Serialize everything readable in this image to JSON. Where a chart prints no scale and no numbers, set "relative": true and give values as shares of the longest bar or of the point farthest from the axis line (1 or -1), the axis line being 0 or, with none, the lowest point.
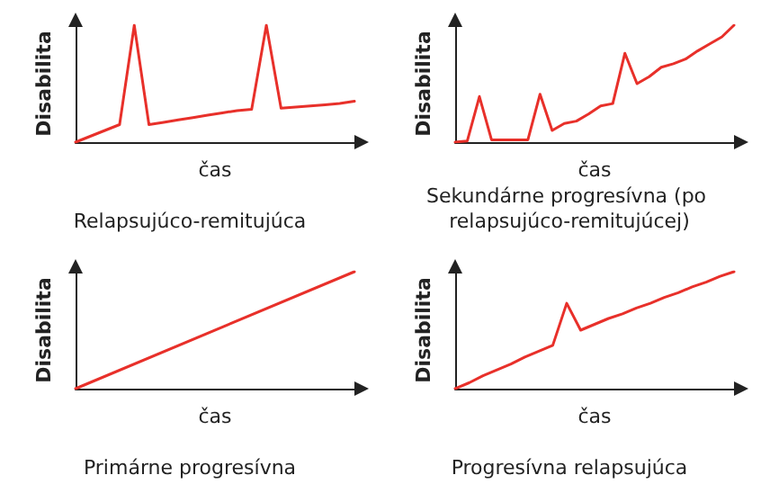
{
  "chart_data": [
    {
      "type": "line",
      "title": "Relapsujúco-remitujúca",
      "xlabel": "čas",
      "ylabel": "Disabilita",
      "relative": true,
      "categories": [
        null,
        null,
        null,
        null,
        null,
        null,
        null,
        null,
        null,
        null,
        null,
        null,
        null,
        null,
        null,
        null,
        null,
        null,
        null,
        null
      ],
      "series": [
        {
          "color": "#e8302a",
          "values": [
            0,
            0.05,
            0.1,
            0.15,
            1,
            0.15,
            0.17,
            0.19,
            0.21,
            0.23,
            0.25,
            0.27,
            0.28,
            1,
            0.29,
            0.3,
            0.31,
            0.32,
            0.33,
            0.35
          ]
        }
      ]
    },
    {
      "type": "line",
      "title": "Sekundárne progresívna (po relapsujúco-remitujúcej)",
      "xlabel": "čas",
      "ylabel": "Disabilita",
      "relative": true,
      "categories": [
        null,
        null,
        null,
        null,
        null,
        null,
        null,
        null,
        null,
        null,
        null,
        null,
        null,
        null,
        null,
        null,
        null,
        null,
        null,
        null,
        null,
        null,
        null,
        null
      ],
      "series": [
        {
          "color": "#e8302a",
          "values": [
            0,
            0.01,
            0.39,
            0.02,
            0.02,
            0.02,
            0.02,
            0.41,
            0.1,
            0.16,
            0.18,
            0.24,
            0.31,
            0.33,
            0.76,
            0.5,
            0.56,
            0.64,
            0.67,
            0.71,
            0.78,
            0.84,
            0.9,
            1
          ]
        }
      ]
    },
    {
      "type": "line",
      "title": "Primárne progresívna",
      "xlabel": "čas",
      "ylabel": "Disabilita",
      "relative": true,
      "categories": [
        null,
        null
      ],
      "series": [
        {
          "color": "#e8302a",
          "values": [
            0,
            1
          ]
        }
      ]
    },
    {
      "type": "line",
      "title": "Progresívna relapsujúca",
      "xlabel": "čas",
      "ylabel": "Disabilita",
      "relative": true,
      "categories": [
        null,
        null,
        null,
        null,
        null,
        null,
        null,
        null,
        null,
        null,
        null,
        null,
        null,
        null,
        null,
        null,
        null,
        null,
        null,
        null,
        null
      ],
      "series": [
        {
          "color": "#e8302a",
          "values": [
            0,
            0.05,
            0.11,
            0.16,
            0.21,
            0.27,
            0.32,
            0.37,
            0.73,
            0.5,
            0.55,
            0.6,
            0.64,
            0.69,
            0.73,
            0.78,
            0.82,
            0.87,
            0.91,
            0.96,
            1
          ]
        }
      ]
    }
  ]
}
